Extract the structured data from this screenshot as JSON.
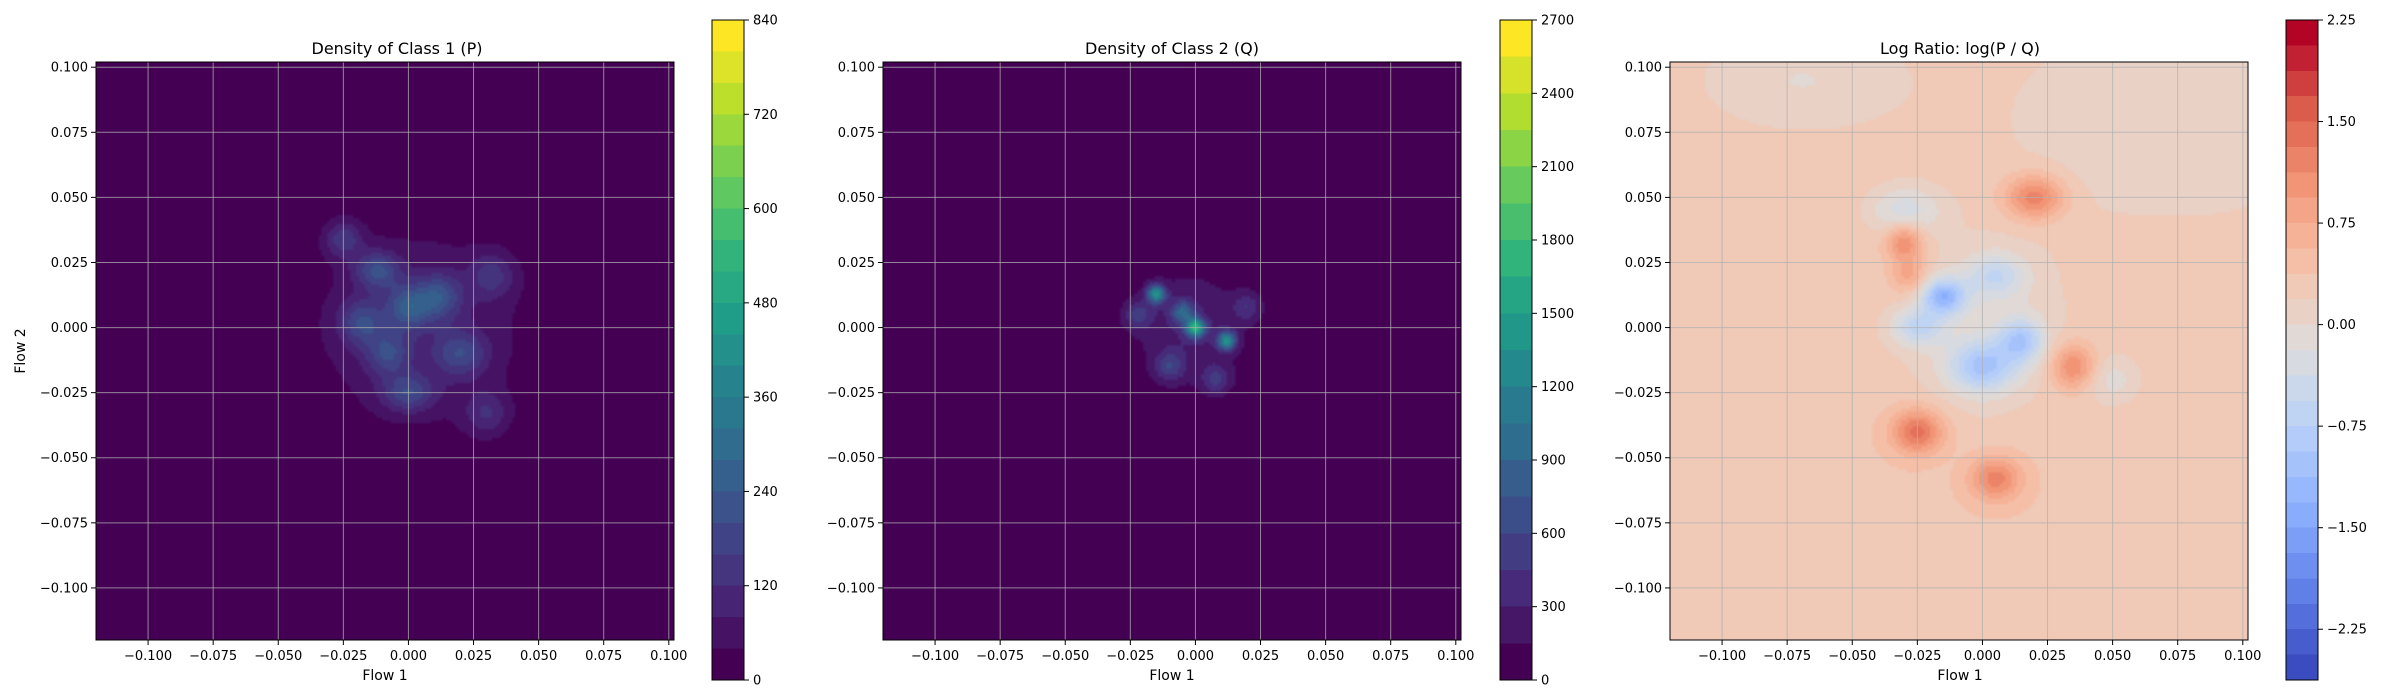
{
  "chart_data": [
    {
      "type": "heatmap",
      "title": "Density of Class 1 (P)",
      "xlabel": "Flow 1",
      "ylabel": "Flow 2",
      "xlim": [
        -0.12,
        0.102
      ],
      "ylim": [
        -0.12,
        0.102
      ],
      "xticks": [
        -0.1,
        -0.075,
        -0.05,
        -0.025,
        0.0,
        0.025,
        0.05,
        0.075,
        0.1
      ],
      "xtick_labels": [
        "−0.100",
        "−0.075",
        "−0.050",
        "−0.025",
        "0.000",
        "0.025",
        "0.050",
        "0.075",
        "0.100"
      ],
      "yticks": [
        0.1,
        0.075,
        0.05,
        0.025,
        0.0,
        -0.025,
        -0.05,
        -0.075,
        -0.1
      ],
      "ytick_labels": [
        "0.100",
        "0.075",
        "0.050",
        "0.025",
        "0.000",
        "−0.025",
        "−0.050",
        "−0.075",
        "−0.100"
      ],
      "grid": true,
      "colormap": "viridis",
      "colorbar": {
        "min": 0,
        "max": 840,
        "levels": 21,
        "ticks": [
          0,
          120,
          240,
          360,
          480,
          600,
          720,
          840
        ],
        "tick_labels": [
          "0",
          "120",
          "240",
          "360",
          "480",
          "600",
          "720",
          "840"
        ]
      },
      "background_value": 0,
      "hotspots": [
        {
          "x": -0.025,
          "y": 0.034,
          "sx": 0.005,
          "sy": 0.005,
          "value": 130
        },
        {
          "x": -0.012,
          "y": 0.022,
          "sx": 0.006,
          "sy": 0.005,
          "value": 170
        },
        {
          "x": 0.0,
          "y": 0.008,
          "sx": 0.006,
          "sy": 0.006,
          "value": 180
        },
        {
          "x": 0.012,
          "y": 0.012,
          "sx": 0.006,
          "sy": 0.006,
          "value": 160
        },
        {
          "x": -0.018,
          "y": 0.002,
          "sx": 0.006,
          "sy": 0.006,
          "value": 150
        },
        {
          "x": 0.02,
          "y": -0.01,
          "sx": 0.007,
          "sy": 0.006,
          "value": 140
        },
        {
          "x": 0.0,
          "y": -0.025,
          "sx": 0.007,
          "sy": 0.005,
          "value": 150
        },
        {
          "x": -0.008,
          "y": -0.01,
          "sx": 0.006,
          "sy": 0.006,
          "value": 140
        },
        {
          "x": 0.032,
          "y": 0.02,
          "sx": 0.006,
          "sy": 0.006,
          "value": 110
        },
        {
          "x": 0.03,
          "y": -0.033,
          "sx": 0.006,
          "sy": 0.006,
          "value": 100
        },
        {
          "x": 0.004,
          "y": 0.0,
          "sx": 0.03,
          "sy": 0.028,
          "value": 80
        }
      ]
    },
    {
      "type": "heatmap",
      "title": "Density of Class 2 (Q)",
      "xlabel": "Flow 1",
      "ylabel": "",
      "xlim": [
        -0.12,
        0.102
      ],
      "ylim": [
        -0.12,
        0.102
      ],
      "xticks": [
        -0.1,
        -0.075,
        -0.05,
        -0.025,
        0.0,
        0.025,
        0.05,
        0.075,
        0.1
      ],
      "xtick_labels": [
        "−0.100",
        "−0.075",
        "−0.050",
        "−0.025",
        "0.000",
        "0.025",
        "0.050",
        "0.075",
        "0.100"
      ],
      "yticks": [
        0.1,
        0.075,
        0.05,
        0.025,
        0.0,
        -0.025,
        -0.05,
        -0.075,
        -0.1
      ],
      "ytick_labels": [
        "0.100",
        "0.075",
        "0.050",
        "0.025",
        "0.000",
        "−0.025",
        "−0.050",
        "−0.075",
        "−0.100"
      ],
      "grid": true,
      "colormap": "viridis",
      "colorbar": {
        "min": 0,
        "max": 2700,
        "levels": 18,
        "ticks": [
          0,
          300,
          600,
          900,
          1200,
          1500,
          1800,
          2100,
          2400,
          2700
        ],
        "tick_labels": [
          "0",
          "300",
          "600",
          "900",
          "1200",
          "1500",
          "1800",
          "2100",
          "2400",
          "2700"
        ]
      },
      "background_value": 0,
      "hotspots": [
        {
          "x": -0.015,
          "y": 0.013,
          "sx": 0.0025,
          "sy": 0.0025,
          "value": 1250
        },
        {
          "x": 0.0,
          "y": 0.0,
          "sx": 0.0025,
          "sy": 0.0025,
          "value": 1500
        },
        {
          "x": 0.012,
          "y": -0.005,
          "sx": 0.0025,
          "sy": 0.0025,
          "value": 1200
        },
        {
          "x": -0.005,
          "y": 0.006,
          "sx": 0.003,
          "sy": 0.003,
          "value": 700
        },
        {
          "x": -0.022,
          "y": 0.005,
          "sx": 0.004,
          "sy": 0.004,
          "value": 400
        },
        {
          "x": -0.01,
          "y": -0.015,
          "sx": 0.004,
          "sy": 0.004,
          "value": 450
        },
        {
          "x": 0.008,
          "y": -0.02,
          "sx": 0.004,
          "sy": 0.004,
          "value": 400
        },
        {
          "x": 0.02,
          "y": 0.008,
          "sx": 0.004,
          "sy": 0.004,
          "value": 350
        },
        {
          "x": -0.002,
          "y": 0.0,
          "sx": 0.016,
          "sy": 0.016,
          "value": 300
        }
      ]
    },
    {
      "type": "heatmap",
      "title": "Log Ratio: log(P / Q)",
      "xlabel": "Flow 1",
      "ylabel": "",
      "xlim": [
        -0.12,
        0.102
      ],
      "ylim": [
        -0.12,
        0.102
      ],
      "xticks": [
        -0.1,
        -0.075,
        -0.05,
        -0.025,
        0.0,
        0.025,
        0.05,
        0.075,
        0.1
      ],
      "xtick_labels": [
        "−0.100",
        "−0.075",
        "−0.050",
        "−0.025",
        "0.000",
        "0.025",
        "0.050",
        "0.075",
        "0.100"
      ],
      "yticks": [
        0.1,
        0.075,
        0.05,
        0.025,
        0.0,
        -0.025,
        -0.05,
        -0.075,
        -0.1
      ],
      "ytick_labels": [
        "0.100",
        "0.075",
        "0.050",
        "0.025",
        "0.000",
        "−0.025",
        "−0.050",
        "−0.075",
        "−0.100"
      ],
      "grid": true,
      "colormap": "coolwarm",
      "colorbar": {
        "min": -2.625,
        "max": 2.25,
        "levels": 26,
        "ticks": [
          -2.25,
          -1.5,
          -0.75,
          0.0,
          0.75,
          1.5,
          2.25
        ],
        "tick_labels": [
          "−2.25",
          "−1.50",
          "−0.75",
          "0.00",
          "0.75",
          "1.50",
          "2.25"
        ]
      },
      "background_value": 0.35,
      "hotspots": [
        {
          "x": -0.015,
          "y": 0.012,
          "sx": 0.006,
          "sy": 0.005,
          "value": -1.4
        },
        {
          "x": 0.0,
          "y": -0.015,
          "sx": 0.009,
          "sy": 0.007,
          "value": -1.1
        },
        {
          "x": 0.015,
          "y": -0.005,
          "sx": 0.006,
          "sy": 0.006,
          "value": -1.0
        },
        {
          "x": -0.025,
          "y": 0.0,
          "sx": 0.007,
          "sy": 0.005,
          "value": -0.8
        },
        {
          "x": 0.005,
          "y": 0.02,
          "sx": 0.008,
          "sy": 0.006,
          "value": -0.7
        },
        {
          "x": -0.03,
          "y": 0.045,
          "sx": 0.01,
          "sy": 0.007,
          "value": -0.6
        },
        {
          "x": 0.05,
          "y": -0.02,
          "sx": 0.008,
          "sy": 0.007,
          "value": -0.4
        },
        {
          "x": 0.0,
          "y": 0.0,
          "sx": 0.025,
          "sy": 0.025,
          "value": -0.35
        },
        {
          "x": 0.02,
          "y": 0.05,
          "sx": 0.008,
          "sy": 0.006,
          "value": 1.0
        },
        {
          "x": -0.03,
          "y": 0.033,
          "sx": 0.005,
          "sy": 0.005,
          "value": 0.9
        },
        {
          "x": 0.035,
          "y": -0.015,
          "sx": 0.006,
          "sy": 0.006,
          "value": 0.9
        },
        {
          "x": -0.025,
          "y": -0.04,
          "sx": 0.007,
          "sy": 0.006,
          "value": 1.1
        },
        {
          "x": 0.005,
          "y": -0.058,
          "sx": 0.007,
          "sy": 0.006,
          "value": 0.9
        },
        {
          "x": -0.028,
          "y": 0.02,
          "sx": 0.005,
          "sy": 0.005,
          "value": 0.6
        },
        {
          "x": 0.075,
          "y": 0.08,
          "sx": 0.05,
          "sy": 0.03,
          "value": -0.35
        },
        {
          "x": -0.07,
          "y": 0.095,
          "sx": 0.03,
          "sy": 0.015,
          "value": -0.35
        }
      ]
    }
  ]
}
